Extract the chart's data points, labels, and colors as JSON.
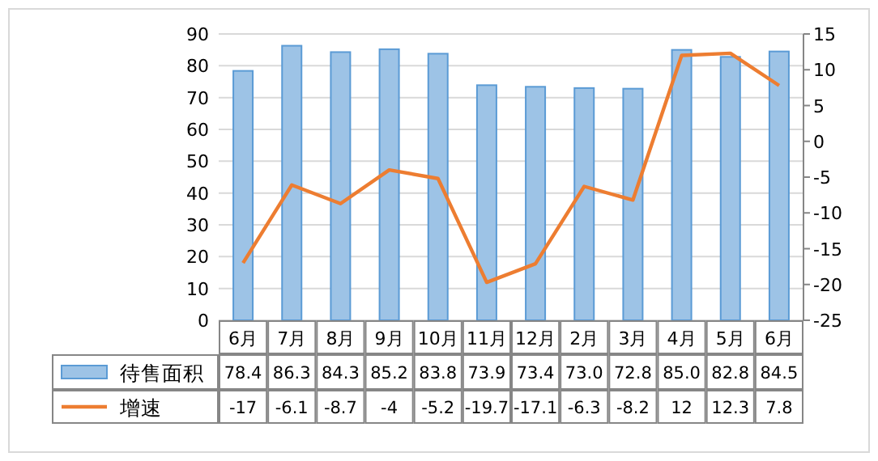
{
  "chart_data": {
    "type": "bar",
    "categories": [
      "6月",
      "7月",
      "8月",
      "9月",
      "10月",
      "11月",
      "12月",
      "2月",
      "3月",
      "4月",
      "5月",
      "6月"
    ],
    "series": [
      {
        "name": "待售面积",
        "color": "#9dc3e6",
        "values": [
          78.4,
          86.3,
          84.3,
          85.2,
          83.8,
          73.9,
          73.4,
          73.0,
          72.8,
          85.0,
          82.8,
          84.5
        ],
        "value_labels": [
          "78.4",
          "86.3",
          "84.3",
          "85.2",
          "83.8",
          "73.9",
          "73.4",
          "73.0",
          "72.8",
          "85.0",
          "82.8",
          "84.5"
        ]
      },
      {
        "name": "增速",
        "type": "line",
        "axis": "y2",
        "color": "#ed7d31",
        "values": [
          -17,
          -6.1,
          -8.7,
          -4,
          -5.2,
          -19.7,
          -17.1,
          -6.3,
          -8.2,
          12,
          12.3,
          7.8
        ],
        "value_labels": [
          "-17",
          "-6.1",
          "-8.7",
          "-4",
          "-5.2",
          "-19.7",
          "-17.1",
          "-6.3",
          "-8.2",
          "12",
          "12.3",
          "7.8"
        ]
      }
    ],
    "ylim": [
      0,
      90
    ],
    "yticks": [
      0,
      10,
      20,
      30,
      40,
      50,
      60,
      70,
      80,
      90
    ],
    "y2lim": [
      -25,
      15
    ],
    "y2ticks": [
      -25,
      -20,
      -15,
      -10,
      -5,
      0,
      5,
      10,
      15
    ],
    "grid": "y",
    "legend": "bottom",
    "marker": "none",
    "line_style": "solid"
  }
}
